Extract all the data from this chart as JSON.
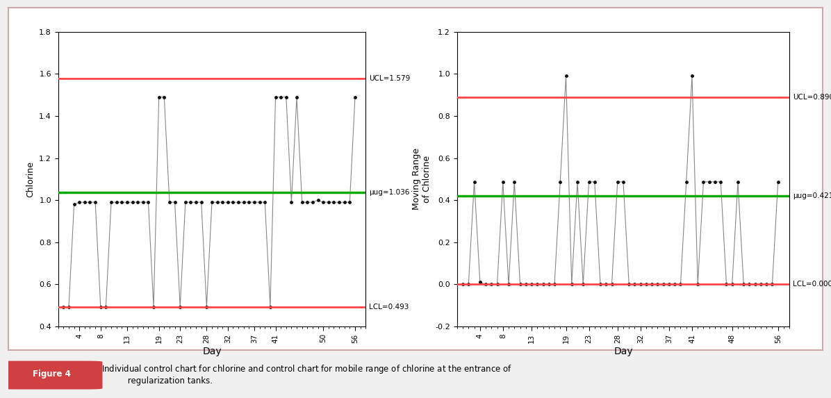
{
  "chart1": {
    "title": "",
    "ylabel": "Chlorine",
    "xlabel": "Day",
    "ucl": 1.579,
    "avg": 1.036,
    "lcl": 0.493,
    "ylim": [
      0.4,
      1.8
    ],
    "yticks": [
      0.4,
      0.6,
      0.8,
      1.0,
      1.2,
      1.4,
      1.6,
      1.8
    ],
    "xticks": [
      4,
      8,
      13,
      19,
      23,
      28,
      32,
      37,
      41,
      50,
      56
    ],
    "data_x": [
      1,
      2,
      3,
      4,
      5,
      6,
      7,
      8,
      9,
      10,
      11,
      12,
      13,
      14,
      15,
      16,
      17,
      18,
      19,
      20,
      21,
      22,
      23,
      24,
      25,
      26,
      27,
      28,
      29,
      30,
      31,
      32,
      33,
      34,
      35,
      36,
      37,
      38,
      39,
      40,
      41,
      42,
      43,
      44,
      45,
      46,
      47,
      48,
      49,
      50,
      51,
      52,
      53,
      54,
      55,
      56
    ],
    "data_y": [
      0.493,
      0.493,
      0.98,
      0.99,
      0.99,
      0.99,
      0.99,
      0.493,
      0.493,
      0.99,
      0.99,
      0.99,
      0.99,
      0.99,
      0.99,
      0.99,
      0.99,
      0.493,
      1.49,
      1.49,
      0.99,
      0.99,
      0.493,
      0.99,
      0.99,
      0.99,
      0.99,
      0.493,
      0.99,
      0.99,
      0.99,
      0.99,
      0.99,
      0.99,
      0.99,
      0.99,
      0.99,
      0.99,
      0.99,
      0.493,
      1.49,
      1.49,
      1.49,
      0.99,
      1.49,
      0.99,
      0.99,
      0.99,
      1.0,
      0.99,
      0.99,
      0.99,
      0.99,
      0.99,
      0.99,
      1.49
    ]
  },
  "chart2": {
    "title": "",
    "ylabel": "Moving Range\nof Chlorine",
    "xlabel": "Day",
    "ucl": 0.89,
    "avg": 0.421,
    "lcl": 0.0,
    "ylim": [
      -0.2,
      1.2
    ],
    "yticks": [
      -0.2,
      0.0,
      0.2,
      0.4,
      0.6,
      0.8,
      1.0,
      1.2
    ],
    "xticks": [
      4,
      8,
      13,
      19,
      23,
      28,
      32,
      37,
      41,
      48,
      56
    ],
    "data_x": [
      1,
      2,
      3,
      4,
      5,
      6,
      7,
      8,
      9,
      10,
      11,
      12,
      13,
      14,
      15,
      16,
      17,
      18,
      19,
      20,
      21,
      22,
      23,
      24,
      25,
      26,
      27,
      28,
      29,
      30,
      31,
      32,
      33,
      34,
      35,
      36,
      37,
      38,
      39,
      40,
      41,
      42,
      43,
      44,
      45,
      46,
      47,
      48,
      49,
      50,
      51,
      52,
      53,
      54,
      55,
      56
    ],
    "data_y": [
      0.0,
      0.0,
      0.487,
      0.01,
      0.0,
      0.0,
      0.0,
      0.487,
      0.0,
      0.487,
      0.0,
      0.0,
      0.0,
      0.0,
      0.0,
      0.0,
      0.0,
      0.487,
      0.99,
      0.0,
      0.487,
      0.0,
      0.487,
      0.487,
      0.0,
      0.0,
      0.0,
      0.487,
      0.487,
      0.0,
      0.0,
      0.0,
      0.0,
      0.0,
      0.0,
      0.0,
      0.0,
      0.0,
      0.0,
      0.487,
      0.99,
      0.0,
      0.487,
      0.487,
      0.487,
      0.487,
      0.0,
      0.0,
      0.487,
      0.0,
      0.0,
      0.0,
      0.0,
      0.0,
      0.0,
      0.487
    ]
  },
  "ucl_color": "#FF4444",
  "lcl_color": "#FF4444",
  "avg_color": "#00AA00",
  "line_color": "#888888",
  "dot_color": "#111111",
  "bg_color": "#FFFFFF",
  "border_color": "#CCCCCC",
  "fig_bg": "#F5F5F5",
  "caption": "Figure 4    x Individual control chart for chlorine and control chart for mobile range of chlorine at the entrance of\n             regularization tanks.",
  "caption_label": "Figure 4",
  "caption_text": "x Individual control chart for chlorine and control chart for mobile range of chlorine at the entrance of regularization tanks."
}
